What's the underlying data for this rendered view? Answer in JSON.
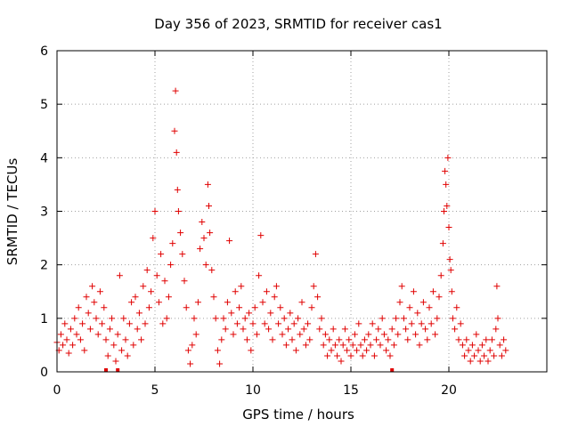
{
  "chart_data": {
    "type": "scatter",
    "title": "Day 356 of 2023, SRMTID for receiver cas1",
    "xlabel": "GPS time / hours",
    "ylabel": "SRMTID / TECUs",
    "xlim": [
      0,
      25
    ],
    "ylim": [
      0,
      6
    ],
    "x_ticks": [
      0,
      5,
      10,
      15,
      20
    ],
    "y_ticks": [
      0,
      1,
      2,
      3,
      4,
      5,
      6
    ],
    "x_tick_labels": [
      "0",
      "5",
      "10",
      "15",
      "20"
    ],
    "y_tick_labels": [
      "0",
      "1",
      "2",
      "3",
      "4",
      "5",
      "6"
    ],
    "grid": true,
    "marker": "plus",
    "color": "#e00000",
    "x_range_of_data": [
      0.0,
      22.9
    ],
    "series": [
      {
        "name": "SRMTID",
        "points": [
          [
            0.0,
            0.55
          ],
          [
            0.1,
            0.4
          ],
          [
            0.2,
            0.7
          ],
          [
            0.3,
            0.5
          ],
          [
            0.4,
            0.9
          ],
          [
            0.5,
            0.6
          ],
          [
            0.6,
            0.35
          ],
          [
            0.7,
            0.8
          ],
          [
            0.8,
            0.5
          ],
          [
            0.9,
            1.0
          ],
          [
            1.0,
            0.7
          ],
          [
            1.1,
            1.2
          ],
          [
            1.2,
            0.6
          ],
          [
            1.3,
            0.9
          ],
          [
            1.4,
            0.4
          ],
          [
            1.5,
            1.4
          ],
          [
            1.6,
            1.1
          ],
          [
            1.7,
            0.8
          ],
          [
            1.8,
            1.6
          ],
          [
            1.9,
            1.3
          ],
          [
            2.0,
            1.0
          ],
          [
            2.1,
            0.7
          ],
          [
            2.2,
            1.5
          ],
          [
            2.3,
            0.9
          ],
          [
            2.4,
            1.2
          ],
          [
            2.5,
            0.6
          ],
          [
            2.6,
            0.3
          ],
          [
            2.7,
            0.8
          ],
          [
            2.8,
            1.0
          ],
          [
            2.9,
            0.5
          ],
          [
            3.0,
            0.2
          ],
          [
            3.1,
            0.7
          ],
          [
            3.2,
            1.8
          ],
          [
            3.3,
            0.4
          ],
          [
            3.4,
            1.0
          ],
          [
            3.5,
            0.6
          ],
          [
            3.6,
            0.3
          ],
          [
            3.7,
            0.9
          ],
          [
            3.8,
            1.3
          ],
          [
            3.9,
            0.5
          ],
          [
            4.0,
            1.4
          ],
          [
            4.1,
            0.8
          ],
          [
            4.2,
            1.1
          ],
          [
            4.3,
            0.6
          ],
          [
            4.4,
            1.6
          ],
          [
            4.5,
            0.9
          ],
          [
            4.6,
            1.9
          ],
          [
            4.7,
            1.2
          ],
          [
            4.8,
            1.5
          ],
          [
            4.9,
            2.5
          ],
          [
            5.0,
            3.0
          ],
          [
            5.1,
            1.8
          ],
          [
            5.2,
            1.3
          ],
          [
            5.3,
            2.2
          ],
          [
            5.4,
            0.9
          ],
          [
            5.5,
            1.7
          ],
          [
            5.6,
            1.0
          ],
          [
            5.7,
            1.4
          ],
          [
            5.8,
            2.0
          ],
          [
            5.9,
            2.4
          ],
          [
            6.0,
            4.5
          ],
          [
            6.05,
            5.25
          ],
          [
            6.1,
            4.1
          ],
          [
            6.15,
            3.4
          ],
          [
            6.2,
            3.0
          ],
          [
            6.3,
            2.6
          ],
          [
            6.4,
            2.2
          ],
          [
            6.5,
            1.7
          ],
          [
            6.6,
            1.2
          ],
          [
            6.7,
            0.4
          ],
          [
            6.8,
            0.15
          ],
          [
            6.9,
            0.5
          ],
          [
            7.0,
            1.0
          ],
          [
            7.1,
            0.7
          ],
          [
            7.2,
            1.3
          ],
          [
            7.3,
            2.3
          ],
          [
            7.4,
            2.8
          ],
          [
            7.5,
            2.5
          ],
          [
            7.6,
            2.0
          ],
          [
            7.7,
            3.5
          ],
          [
            7.75,
            3.1
          ],
          [
            7.8,
            2.6
          ],
          [
            7.9,
            1.9
          ],
          [
            8.0,
            1.4
          ],
          [
            8.1,
            1.0
          ],
          [
            8.2,
            0.4
          ],
          [
            8.3,
            0.15
          ],
          [
            8.4,
            0.6
          ],
          [
            8.5,
            1.0
          ],
          [
            8.6,
            0.8
          ],
          [
            8.7,
            1.3
          ],
          [
            8.8,
            2.45
          ],
          [
            8.9,
            1.1
          ],
          [
            9.0,
            0.7
          ],
          [
            9.1,
            1.5
          ],
          [
            9.2,
            0.9
          ],
          [
            9.3,
            1.2
          ],
          [
            9.4,
            1.6
          ],
          [
            9.5,
            0.8
          ],
          [
            9.6,
            1.0
          ],
          [
            9.7,
            0.6
          ],
          [
            9.8,
            1.1
          ],
          [
            9.9,
            0.4
          ],
          [
            10.0,
            0.9
          ],
          [
            10.1,
            1.2
          ],
          [
            10.2,
            0.7
          ],
          [
            10.3,
            1.8
          ],
          [
            10.4,
            2.55
          ],
          [
            10.5,
            1.3
          ],
          [
            10.6,
            0.9
          ],
          [
            10.7,
            1.5
          ],
          [
            10.8,
            0.8
          ],
          [
            10.9,
            1.1
          ],
          [
            11.0,
            0.6
          ],
          [
            11.1,
            1.4
          ],
          [
            11.2,
            1.6
          ],
          [
            11.3,
            0.9
          ],
          [
            11.4,
            1.2
          ],
          [
            11.5,
            0.7
          ],
          [
            11.6,
            1.0
          ],
          [
            11.7,
            0.5
          ],
          [
            11.8,
            0.8
          ],
          [
            11.9,
            1.1
          ],
          [
            12.0,
            0.6
          ],
          [
            12.1,
            0.9
          ],
          [
            12.2,
            0.4
          ],
          [
            12.3,
            1.0
          ],
          [
            12.4,
            0.7
          ],
          [
            12.5,
            1.3
          ],
          [
            12.6,
            0.8
          ],
          [
            12.7,
            0.5
          ],
          [
            12.8,
            0.9
          ],
          [
            12.9,
            0.6
          ],
          [
            13.0,
            1.2
          ],
          [
            13.1,
            1.6
          ],
          [
            13.2,
            2.2
          ],
          [
            13.3,
            1.4
          ],
          [
            13.4,
            0.8
          ],
          [
            13.5,
            1.0
          ],
          [
            13.6,
            0.5
          ],
          [
            13.7,
            0.7
          ],
          [
            13.8,
            0.3
          ],
          [
            13.9,
            0.6
          ],
          [
            14.0,
            0.4
          ],
          [
            14.1,
            0.8
          ],
          [
            14.2,
            0.5
          ],
          [
            14.3,
            0.3
          ],
          [
            14.4,
            0.6
          ],
          [
            14.5,
            0.2
          ],
          [
            14.6,
            0.5
          ],
          [
            14.7,
            0.8
          ],
          [
            14.8,
            0.4
          ],
          [
            14.9,
            0.6
          ],
          [
            15.0,
            0.3
          ],
          [
            15.1,
            0.5
          ],
          [
            15.2,
            0.7
          ],
          [
            15.3,
            0.4
          ],
          [
            15.4,
            0.9
          ],
          [
            15.5,
            0.5
          ],
          [
            15.6,
            0.3
          ],
          [
            15.7,
            0.6
          ],
          [
            15.8,
            0.4
          ],
          [
            15.9,
            0.7
          ],
          [
            16.0,
            0.5
          ],
          [
            16.1,
            0.9
          ],
          [
            16.2,
            0.3
          ],
          [
            16.3,
            0.6
          ],
          [
            16.4,
            0.8
          ],
          [
            16.5,
            0.5
          ],
          [
            16.6,
            1.0
          ],
          [
            16.7,
            0.7
          ],
          [
            16.8,
            0.4
          ],
          [
            16.9,
            0.6
          ],
          [
            17.0,
            0.3
          ],
          [
            17.1,
            0.8
          ],
          [
            17.2,
            0.5
          ],
          [
            17.3,
            1.0
          ],
          [
            17.4,
            0.7
          ],
          [
            17.5,
            1.3
          ],
          [
            17.6,
            1.6
          ],
          [
            17.7,
            1.0
          ],
          [
            17.8,
            0.8
          ],
          [
            17.9,
            0.6
          ],
          [
            18.0,
            1.2
          ],
          [
            18.1,
            0.9
          ],
          [
            18.2,
            1.5
          ],
          [
            18.3,
            0.7
          ],
          [
            18.4,
            1.1
          ],
          [
            18.5,
            0.5
          ],
          [
            18.6,
            0.9
          ],
          [
            18.7,
            1.3
          ],
          [
            18.8,
            0.8
          ],
          [
            18.9,
            0.6
          ],
          [
            19.0,
            1.2
          ],
          [
            19.1,
            0.9
          ],
          [
            19.2,
            1.5
          ],
          [
            19.3,
            0.7
          ],
          [
            19.4,
            1.0
          ],
          [
            19.5,
            1.4
          ],
          [
            19.6,
            1.8
          ],
          [
            19.7,
            2.4
          ],
          [
            19.75,
            3.0
          ],
          [
            19.8,
            3.75
          ],
          [
            19.85,
            3.5
          ],
          [
            19.9,
            3.1
          ],
          [
            19.95,
            4.0
          ],
          [
            20.0,
            2.7
          ],
          [
            20.05,
            2.1
          ],
          [
            20.1,
            1.9
          ],
          [
            20.15,
            1.5
          ],
          [
            20.2,
            1.0
          ],
          [
            20.3,
            0.8
          ],
          [
            20.4,
            1.2
          ],
          [
            20.5,
            0.6
          ],
          [
            20.6,
            0.9
          ],
          [
            20.7,
            0.5
          ],
          [
            20.8,
            0.3
          ],
          [
            20.9,
            0.6
          ],
          [
            21.0,
            0.4
          ],
          [
            21.1,
            0.2
          ],
          [
            21.2,
            0.5
          ],
          [
            21.3,
            0.3
          ],
          [
            21.4,
            0.7
          ],
          [
            21.5,
            0.4
          ],
          [
            21.6,
            0.2
          ],
          [
            21.7,
            0.5
          ],
          [
            21.8,
            0.3
          ],
          [
            21.9,
            0.6
          ],
          [
            22.0,
            0.2
          ],
          [
            22.1,
            0.4
          ],
          [
            22.2,
            0.6
          ],
          [
            22.3,
            0.3
          ],
          [
            22.4,
            0.8
          ],
          [
            22.45,
            1.6
          ],
          [
            22.5,
            1.0
          ],
          [
            22.6,
            0.5
          ],
          [
            22.7,
            0.3
          ],
          [
            22.8,
            0.6
          ],
          [
            22.9,
            0.4
          ]
        ]
      }
    ],
    "gap_markers_at_zero": [
      2.5,
      3.1,
      17.1
    ]
  }
}
